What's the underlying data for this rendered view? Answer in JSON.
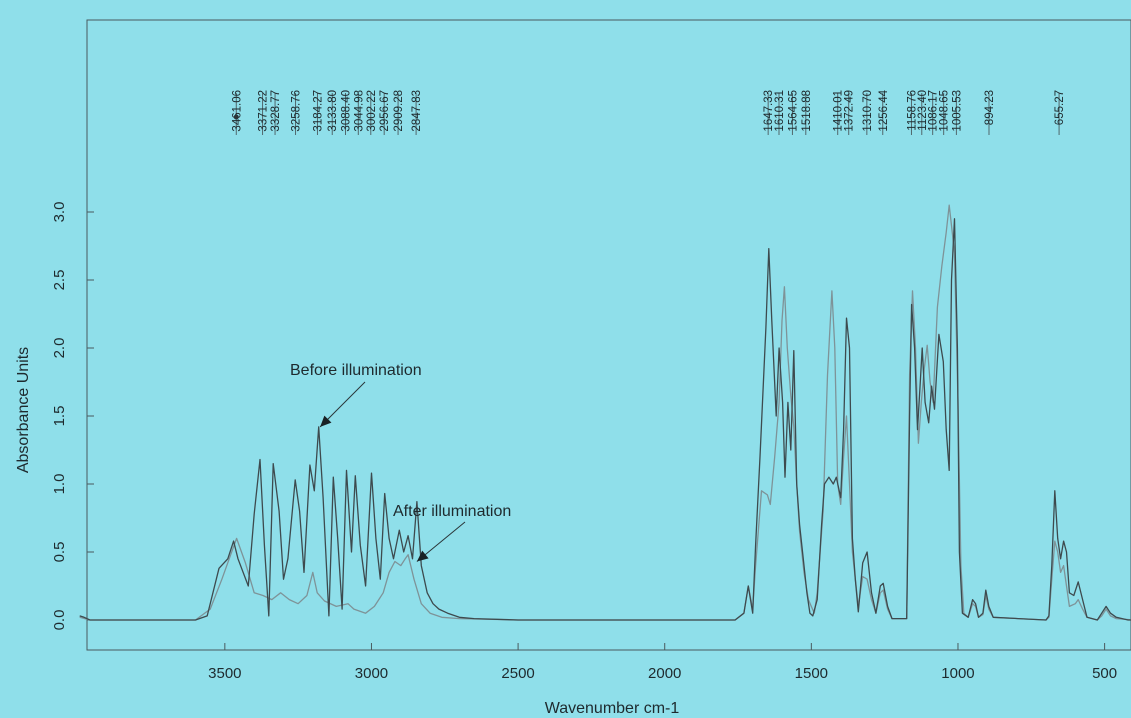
{
  "chart_data": {
    "type": "line",
    "xlabel": "Wavenumber cm-1",
    "ylabel": "Absorbance Units",
    "xlim": [
      4000,
      400
    ],
    "ylim": [
      -0.1,
      3.3
    ],
    "x_ticks": [
      3500,
      3000,
      2500,
      2000,
      1500,
      1000,
      500
    ],
    "x_tick_labels": [
      "3500",
      "3000",
      "2500",
      "2000",
      "1500",
      "1000",
      "500"
    ],
    "y_ticks": [
      0.0,
      0.5,
      1.0,
      1.5,
      2.0,
      2.5,
      3.0
    ],
    "y_tick_labels": [
      "0.0",
      "0.5",
      "1.0",
      "1.5",
      "2.0",
      "2.5",
      "3.0"
    ],
    "grid": false,
    "series": [
      {
        "label_ref": "before",
        "color": "#3d4a4e",
        "points": [
          [
            3995,
            0.03
          ],
          [
            3980,
            0.02
          ],
          [
            3960,
            0.0
          ],
          [
            3600,
            0.0
          ],
          [
            3560,
            0.03
          ],
          [
            3520,
            0.38
          ],
          [
            3490,
            0.45
          ],
          [
            3470,
            0.58
          ],
          [
            3455,
            0.45
          ],
          [
            3420,
            0.25
          ],
          [
            3400,
            0.78
          ],
          [
            3380,
            1.18
          ],
          [
            3365,
            0.55
          ],
          [
            3350,
            0.03
          ],
          [
            3335,
            1.15
          ],
          [
            3315,
            0.8
          ],
          [
            3300,
            0.3
          ],
          [
            3285,
            0.45
          ],
          [
            3260,
            1.03
          ],
          [
            3245,
            0.8
          ],
          [
            3230,
            0.35
          ],
          [
            3210,
            1.14
          ],
          [
            3195,
            0.95
          ],
          [
            3180,
            1.42
          ],
          [
            3165,
            0.9
          ],
          [
            3145,
            0.03
          ],
          [
            3130,
            1.05
          ],
          [
            3115,
            0.6
          ],
          [
            3100,
            0.08
          ],
          [
            3085,
            1.1
          ],
          [
            3068,
            0.5
          ],
          [
            3055,
            1.06
          ],
          [
            3038,
            0.55
          ],
          [
            3020,
            0.25
          ],
          [
            3000,
            1.08
          ],
          [
            2985,
            0.6
          ],
          [
            2970,
            0.3
          ],
          [
            2955,
            0.93
          ],
          [
            2940,
            0.6
          ],
          [
            2925,
            0.45
          ],
          [
            2905,
            0.66
          ],
          [
            2890,
            0.5
          ],
          [
            2875,
            0.62
          ],
          [
            2860,
            0.45
          ],
          [
            2845,
            0.87
          ],
          [
            2830,
            0.4
          ],
          [
            2810,
            0.2
          ],
          [
            2790,
            0.12
          ],
          [
            2770,
            0.08
          ],
          [
            2740,
            0.05
          ],
          [
            2700,
            0.02
          ],
          [
            2650,
            0.01
          ],
          [
            2500,
            0.0
          ],
          [
            1760,
            0.0
          ],
          [
            1730,
            0.05
          ],
          [
            1715,
            0.25
          ],
          [
            1700,
            0.05
          ],
          [
            1690,
            0.55
          ],
          [
            1675,
            1.2
          ],
          [
            1655,
            2.15
          ],
          [
            1645,
            2.73
          ],
          [
            1635,
            2.2
          ],
          [
            1620,
            1.5
          ],
          [
            1610,
            2.0
          ],
          [
            1598,
            1.6
          ],
          [
            1590,
            1.05
          ],
          [
            1580,
            1.6
          ],
          [
            1570,
            1.25
          ],
          [
            1560,
            1.98
          ],
          [
            1550,
            1.0
          ],
          [
            1540,
            0.7
          ],
          [
            1525,
            0.4
          ],
          [
            1515,
            0.2
          ],
          [
            1505,
            0.05
          ],
          [
            1495,
            0.03
          ],
          [
            1480,
            0.15
          ],
          [
            1465,
            0.7
          ],
          [
            1455,
            1.0
          ],
          [
            1440,
            1.05
          ],
          [
            1425,
            1.0
          ],
          [
            1415,
            1.05
          ],
          [
            1400,
            0.9
          ],
          [
            1390,
            1.4
          ],
          [
            1380,
            2.22
          ],
          [
            1370,
            2.0
          ],
          [
            1360,
            0.6
          ],
          [
            1350,
            0.3
          ],
          [
            1340,
            0.06
          ],
          [
            1325,
            0.42
          ],
          [
            1310,
            0.5
          ],
          [
            1295,
            0.2
          ],
          [
            1280,
            0.05
          ],
          [
            1265,
            0.25
          ],
          [
            1255,
            0.27
          ],
          [
            1240,
            0.1
          ],
          [
            1225,
            0.01
          ],
          [
            1175,
            0.01
          ],
          [
            1165,
            1.5
          ],
          [
            1158,
            2.32
          ],
          [
            1148,
            2.0
          ],
          [
            1138,
            1.4
          ],
          [
            1130,
            1.7
          ],
          [
            1122,
            2.0
          ],
          [
            1112,
            1.6
          ],
          [
            1100,
            1.45
          ],
          [
            1090,
            1.72
          ],
          [
            1080,
            1.55
          ],
          [
            1065,
            2.1
          ],
          [
            1050,
            1.9
          ],
          [
            1040,
            1.4
          ],
          [
            1030,
            1.1
          ],
          [
            1022,
            2.5
          ],
          [
            1012,
            2.95
          ],
          [
            1002,
            2.0
          ],
          [
            995,
            0.5
          ],
          [
            985,
            0.05
          ],
          [
            965,
            0.02
          ],
          [
            950,
            0.15
          ],
          [
            940,
            0.12
          ],
          [
            930,
            0.02
          ],
          [
            915,
            0.05
          ],
          [
            905,
            0.22
          ],
          [
            895,
            0.1
          ],
          [
            880,
            0.02
          ],
          [
            700,
            0.0
          ],
          [
            690,
            0.03
          ],
          [
            680,
            0.4
          ],
          [
            670,
            0.95
          ],
          [
            660,
            0.6
          ],
          [
            650,
            0.45
          ],
          [
            640,
            0.58
          ],
          [
            630,
            0.5
          ],
          [
            620,
            0.2
          ],
          [
            605,
            0.18
          ],
          [
            590,
            0.28
          ],
          [
            575,
            0.15
          ],
          [
            560,
            0.02
          ],
          [
            525,
            0.0
          ],
          [
            510,
            0.05
          ],
          [
            495,
            0.1
          ],
          [
            480,
            0.05
          ],
          [
            460,
            0.02
          ],
          [
            420,
            0.0
          ],
          [
            400,
            0.0
          ]
        ]
      },
      {
        "label_ref": "after",
        "color": "#7e9398",
        "points": [
          [
            3995,
            0.02
          ],
          [
            3960,
            0.0
          ],
          [
            3600,
            0.0
          ],
          [
            3550,
            0.08
          ],
          [
            3510,
            0.3
          ],
          [
            3480,
            0.48
          ],
          [
            3460,
            0.6
          ],
          [
            3430,
            0.42
          ],
          [
            3400,
            0.2
          ],
          [
            3370,
            0.18
          ],
          [
            3340,
            0.15
          ],
          [
            3310,
            0.2
          ],
          [
            3280,
            0.15
          ],
          [
            3250,
            0.12
          ],
          [
            3220,
            0.18
          ],
          [
            3200,
            0.35
          ],
          [
            3185,
            0.2
          ],
          [
            3160,
            0.14
          ],
          [
            3120,
            0.1
          ],
          [
            3080,
            0.12
          ],
          [
            3060,
            0.08
          ],
          [
            3020,
            0.05
          ],
          [
            2990,
            0.1
          ],
          [
            2960,
            0.2
          ],
          [
            2940,
            0.35
          ],
          [
            2920,
            0.43
          ],
          [
            2900,
            0.4
          ],
          [
            2885,
            0.45
          ],
          [
            2875,
            0.48
          ],
          [
            2855,
            0.3
          ],
          [
            2830,
            0.12
          ],
          [
            2800,
            0.05
          ],
          [
            2760,
            0.02
          ],
          [
            2700,
            0.01
          ],
          [
            2500,
            0.0
          ],
          [
            1760,
            0.0
          ],
          [
            1730,
            0.05
          ],
          [
            1715,
            0.25
          ],
          [
            1700,
            0.08
          ],
          [
            1690,
            0.4
          ],
          [
            1670,
            0.95
          ],
          [
            1650,
            0.92
          ],
          [
            1640,
            0.85
          ],
          [
            1625,
            1.2
          ],
          [
            1610,
            1.6
          ],
          [
            1600,
            2.2
          ],
          [
            1592,
            2.45
          ],
          [
            1582,
            2.0
          ],
          [
            1570,
            1.65
          ],
          [
            1560,
            1.42
          ],
          [
            1550,
            1.0
          ],
          [
            1540,
            0.65
          ],
          [
            1525,
            0.35
          ],
          [
            1510,
            0.15
          ],
          [
            1500,
            0.1
          ],
          [
            1490,
            0.05
          ],
          [
            1480,
            0.2
          ],
          [
            1460,
            0.8
          ],
          [
            1445,
            1.8
          ],
          [
            1430,
            2.42
          ],
          [
            1420,
            2.0
          ],
          [
            1410,
            1.0
          ],
          [
            1400,
            0.85
          ],
          [
            1390,
            1.2
          ],
          [
            1380,
            1.5
          ],
          [
            1370,
            1.0
          ],
          [
            1360,
            0.5
          ],
          [
            1340,
            0.1
          ],
          [
            1325,
            0.32
          ],
          [
            1310,
            0.3
          ],
          [
            1295,
            0.15
          ],
          [
            1280,
            0.05
          ],
          [
            1265,
            0.2
          ],
          [
            1255,
            0.22
          ],
          [
            1240,
            0.08
          ],
          [
            1225,
            0.01
          ],
          [
            1175,
            0.01
          ],
          [
            1165,
            1.8
          ],
          [
            1155,
            2.42
          ],
          [
            1145,
            2.0
          ],
          [
            1135,
            1.3
          ],
          [
            1125,
            1.6
          ],
          [
            1115,
            1.85
          ],
          [
            1105,
            2.02
          ],
          [
            1095,
            1.75
          ],
          [
            1085,
            1.6
          ],
          [
            1070,
            2.3
          ],
          [
            1055,
            2.6
          ],
          [
            1040,
            2.85
          ],
          [
            1030,
            3.05
          ],
          [
            1022,
            2.9
          ],
          [
            1012,
            2.7
          ],
          [
            1000,
            1.6
          ],
          [
            990,
            0.4
          ],
          [
            980,
            0.05
          ],
          [
            965,
            0.02
          ],
          [
            950,
            0.12
          ],
          [
            940,
            0.1
          ],
          [
            930,
            0.02
          ],
          [
            915,
            0.04
          ],
          [
            905,
            0.18
          ],
          [
            895,
            0.08
          ],
          [
            880,
            0.02
          ],
          [
            700,
            0.0
          ],
          [
            690,
            0.02
          ],
          [
            680,
            0.3
          ],
          [
            670,
            0.58
          ],
          [
            660,
            0.5
          ],
          [
            650,
            0.35
          ],
          [
            640,
            0.4
          ],
          [
            630,
            0.25
          ],
          [
            620,
            0.1
          ],
          [
            600,
            0.12
          ],
          [
            590,
            0.15
          ],
          [
            575,
            0.08
          ],
          [
            560,
            0.02
          ],
          [
            525,
            0.0
          ],
          [
            510,
            0.03
          ],
          [
            495,
            0.08
          ],
          [
            480,
            0.03
          ],
          [
            460,
            0.01
          ],
          [
            400,
            0.0
          ]
        ]
      }
    ],
    "peak_labels": [
      "3461.06",
      "3371.22",
      "3328.77",
      "3258.76",
      "3184.27",
      "3133.80",
      "3088.40",
      "3044.98",
      "3002.22",
      "2956.67",
      "2909.28",
      "2847.83",
      "1647.33",
      "1610.31",
      "1564.65",
      "1518.88",
      "1410.01",
      "1372.49",
      "1310.70",
      "1256.44",
      "1158.76",
      "1123.40",
      "1086.17",
      "1048.65",
      "1005.53",
      "894.23",
      "655.27"
    ],
    "annotations": [
      {
        "ref": "before",
        "text": "Before illumination",
        "x": 3175,
        "y": 1.42
      },
      {
        "ref": "after",
        "text": "After illumination",
        "x": 2845,
        "y": 0.43
      }
    ]
  }
}
